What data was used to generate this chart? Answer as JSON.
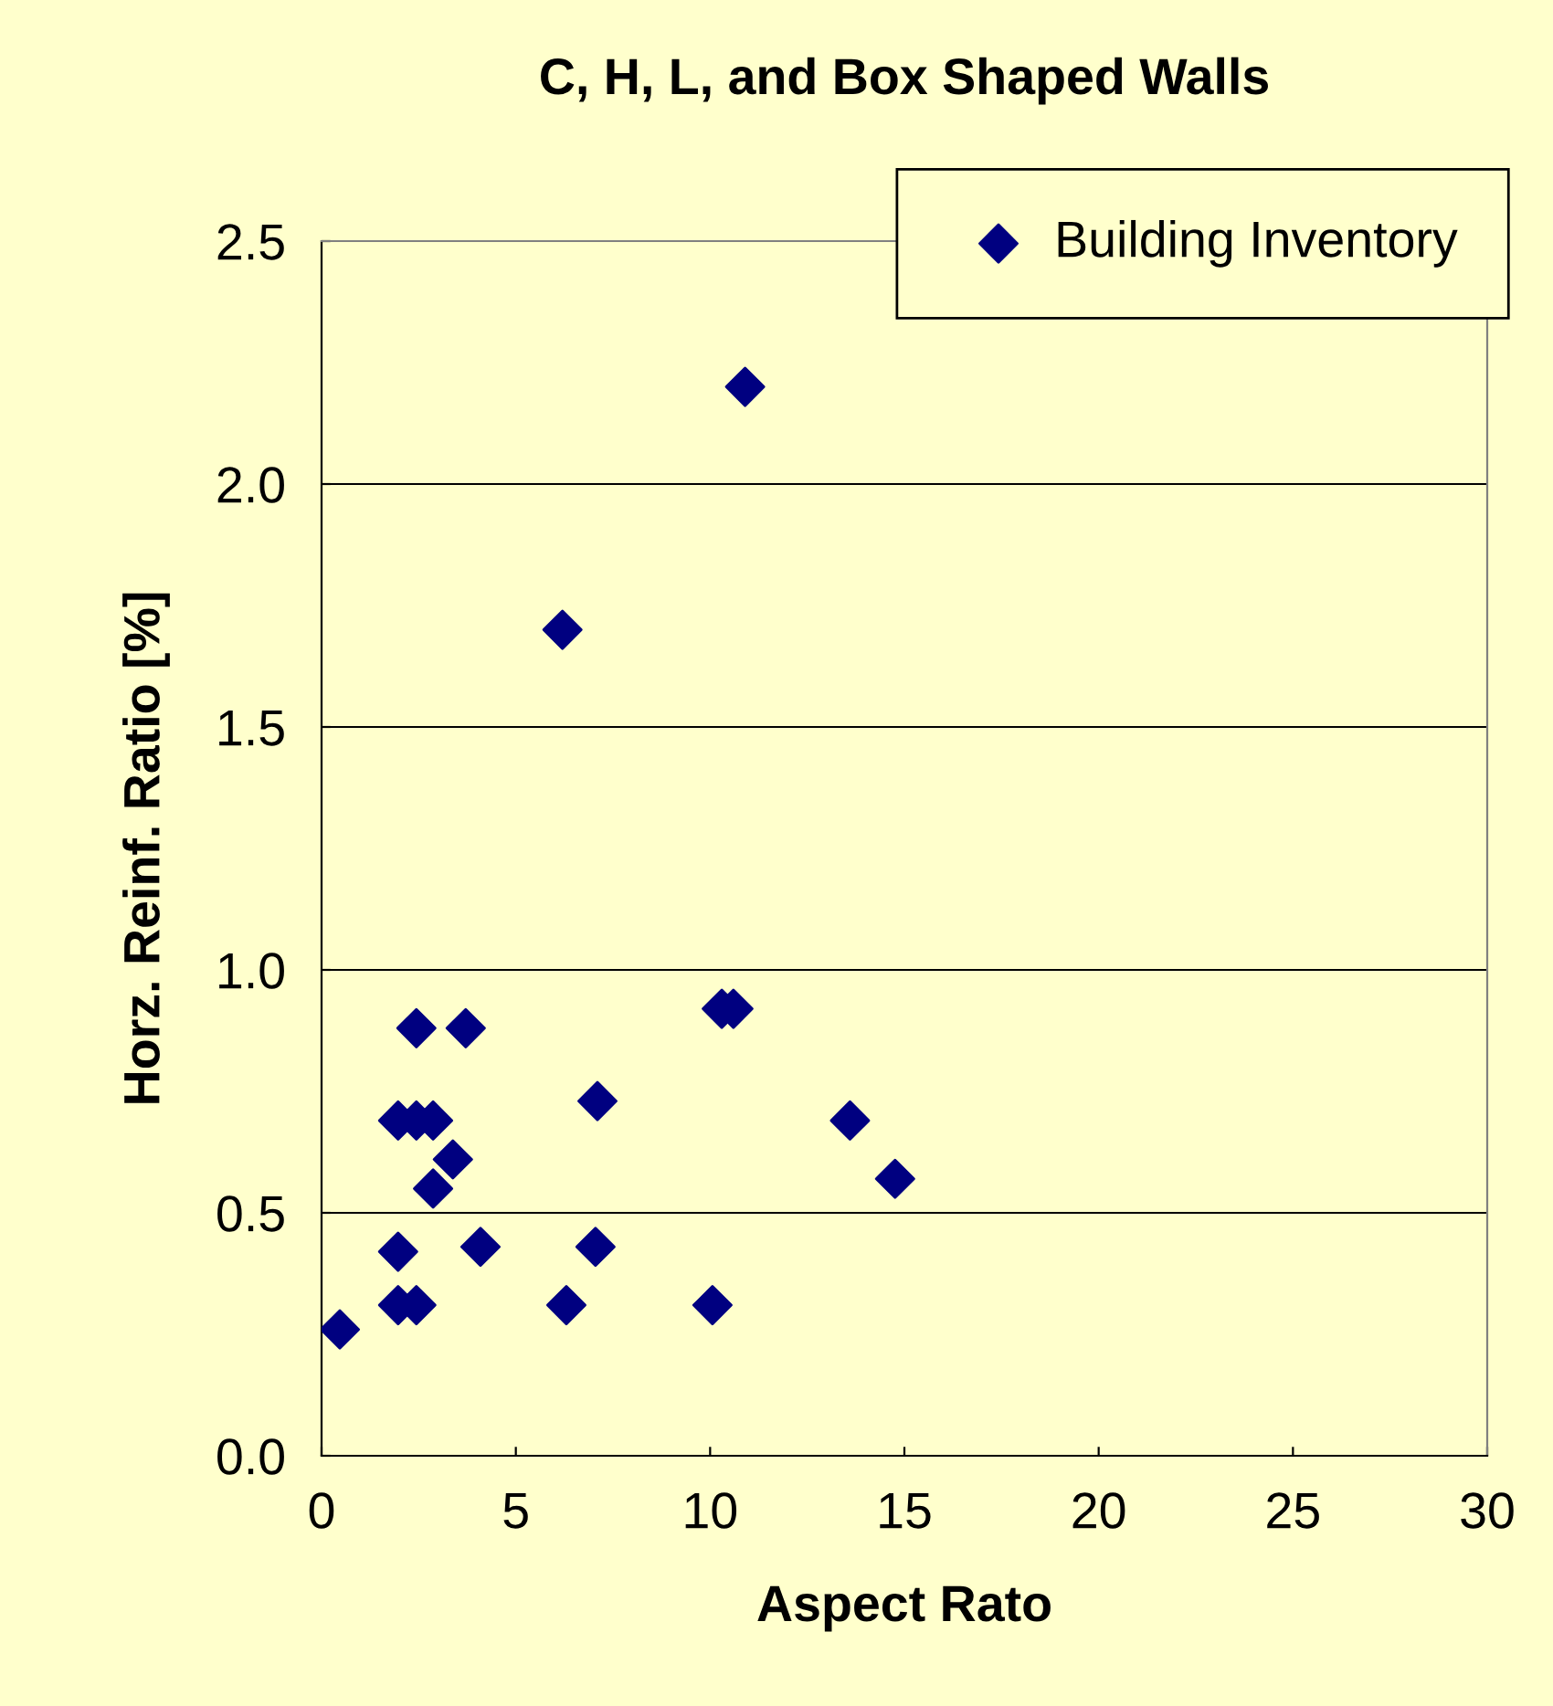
{
  "chart_data": {
    "type": "scatter",
    "title": "C, H, L, and Box Shaped Walls",
    "xlabel": "Aspect Rato",
    "ylabel": "Horz. Reinf. Ratio [%]",
    "series": [
      {
        "name": "Building Inventory",
        "color": "#000080",
        "x": [
          0.47,
          1.97,
          1.97,
          1.97,
          2.44,
          2.44,
          2.44,
          2.87,
          2.87,
          3.38,
          3.71,
          4.09,
          6.2,
          6.3,
          7.1,
          7.05,
          10.06,
          10.3,
          10.6,
          10.9,
          13.6,
          14.76
        ],
        "values": [
          0.26,
          0.69,
          0.42,
          0.31,
          0.88,
          0.69,
          0.31,
          0.69,
          0.55,
          0.61,
          0.88,
          0.43,
          1.7,
          0.31,
          0.73,
          0.43,
          0.31,
          0.92,
          0.92,
          2.2,
          0.69,
          0.57
        ]
      }
    ],
    "xlim": [
      0,
      30
    ],
    "xticks": [
      0,
      5,
      10,
      15,
      20,
      25,
      30
    ],
    "ylim": [
      0,
      2.5
    ],
    "yticks": [
      {
        "value": 0,
        "label": "0.0"
      },
      {
        "value": 0.5,
        "label": "0.5"
      },
      {
        "value": 1,
        "label": "1.0"
      },
      {
        "value": 1.5,
        "label": "1.5"
      },
      {
        "value": 2,
        "label": "2.0"
      },
      {
        "value": 2.5,
        "label": "2.5"
      }
    ],
    "grid": "y",
    "legend": "top right",
    "marker": "diamond"
  }
}
